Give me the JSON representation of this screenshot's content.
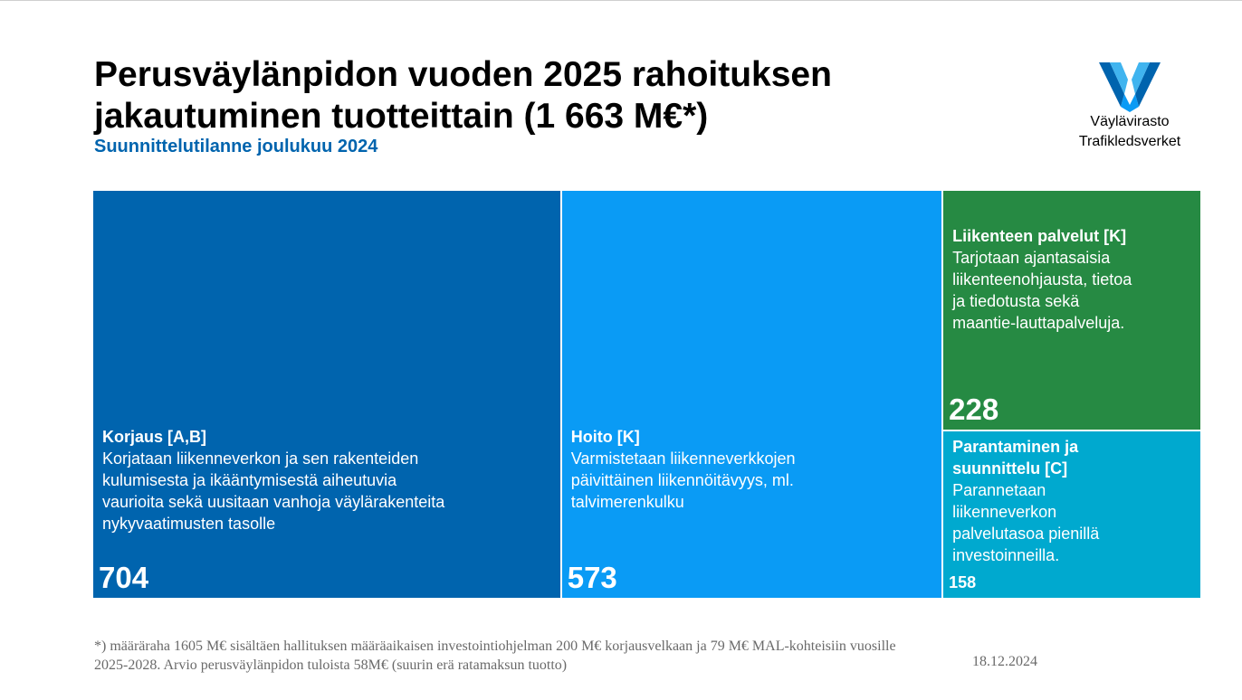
{
  "title": "Perusväylänpidon vuoden 2025 rahoituksen jakautuminen tuotteittain (1 663 M€*)",
  "subtitle": "Suunnittelutilanne joulukuu 2024",
  "logo": {
    "line1": "Väylävirasto",
    "line2": "Trafikledsverket",
    "icon": "vaylavirasto-v-logo-icon"
  },
  "chart_data": {
    "type": "treemap",
    "title": "Perusväylänpidon vuoden 2025 rahoituksen jakautuminen tuotteittain (1 663 M€*)",
    "items": [
      {
        "name": "Korjaus [A,B]",
        "description": "Korjataan liikenneverkon ja sen rakenteiden kulumisesta ja ikääntymisestä aiheutuvia vaurioita sekä uusitaan vanhoja väylärakenteita nykyvaatimusten tasolle",
        "value": 704,
        "color": "#0064ae"
      },
      {
        "name": "Hoito [K]",
        "description": "Varmistetaan liikenneverkkojen päivittäinen liikennöitävyys, ml. talvimerenkulku",
        "value": 573,
        "color": "#0a9bf5"
      },
      {
        "name": "Liikenteen palvelut [K]",
        "description": "Tarjotaan ajantasaisia liikenteenohjausta, tietoa ja tiedotusta sekä maantie-lauttapalveluja.",
        "value": 228,
        "color": "#268a43"
      },
      {
        "name": "Parantaminen ja suunnittelu [C]",
        "description": "Parannetaan liikenneverkon palvelutasoa pienillä investoinneilla.",
        "value": 158,
        "color": "#00a9cf"
      }
    ]
  },
  "footnote": "*) määräraha 1605 M€ sisältäen hallituksen määräaikaisen investointiohjelman 200 M€ korjausvelkaan ja 79 M€ MAL-kohteisiin vuosille 2025-2028. Arvio perusväylänpidon tuloista 58M€ (suurin erä ratamaksun tuotto)",
  "date": "18.12.2024"
}
